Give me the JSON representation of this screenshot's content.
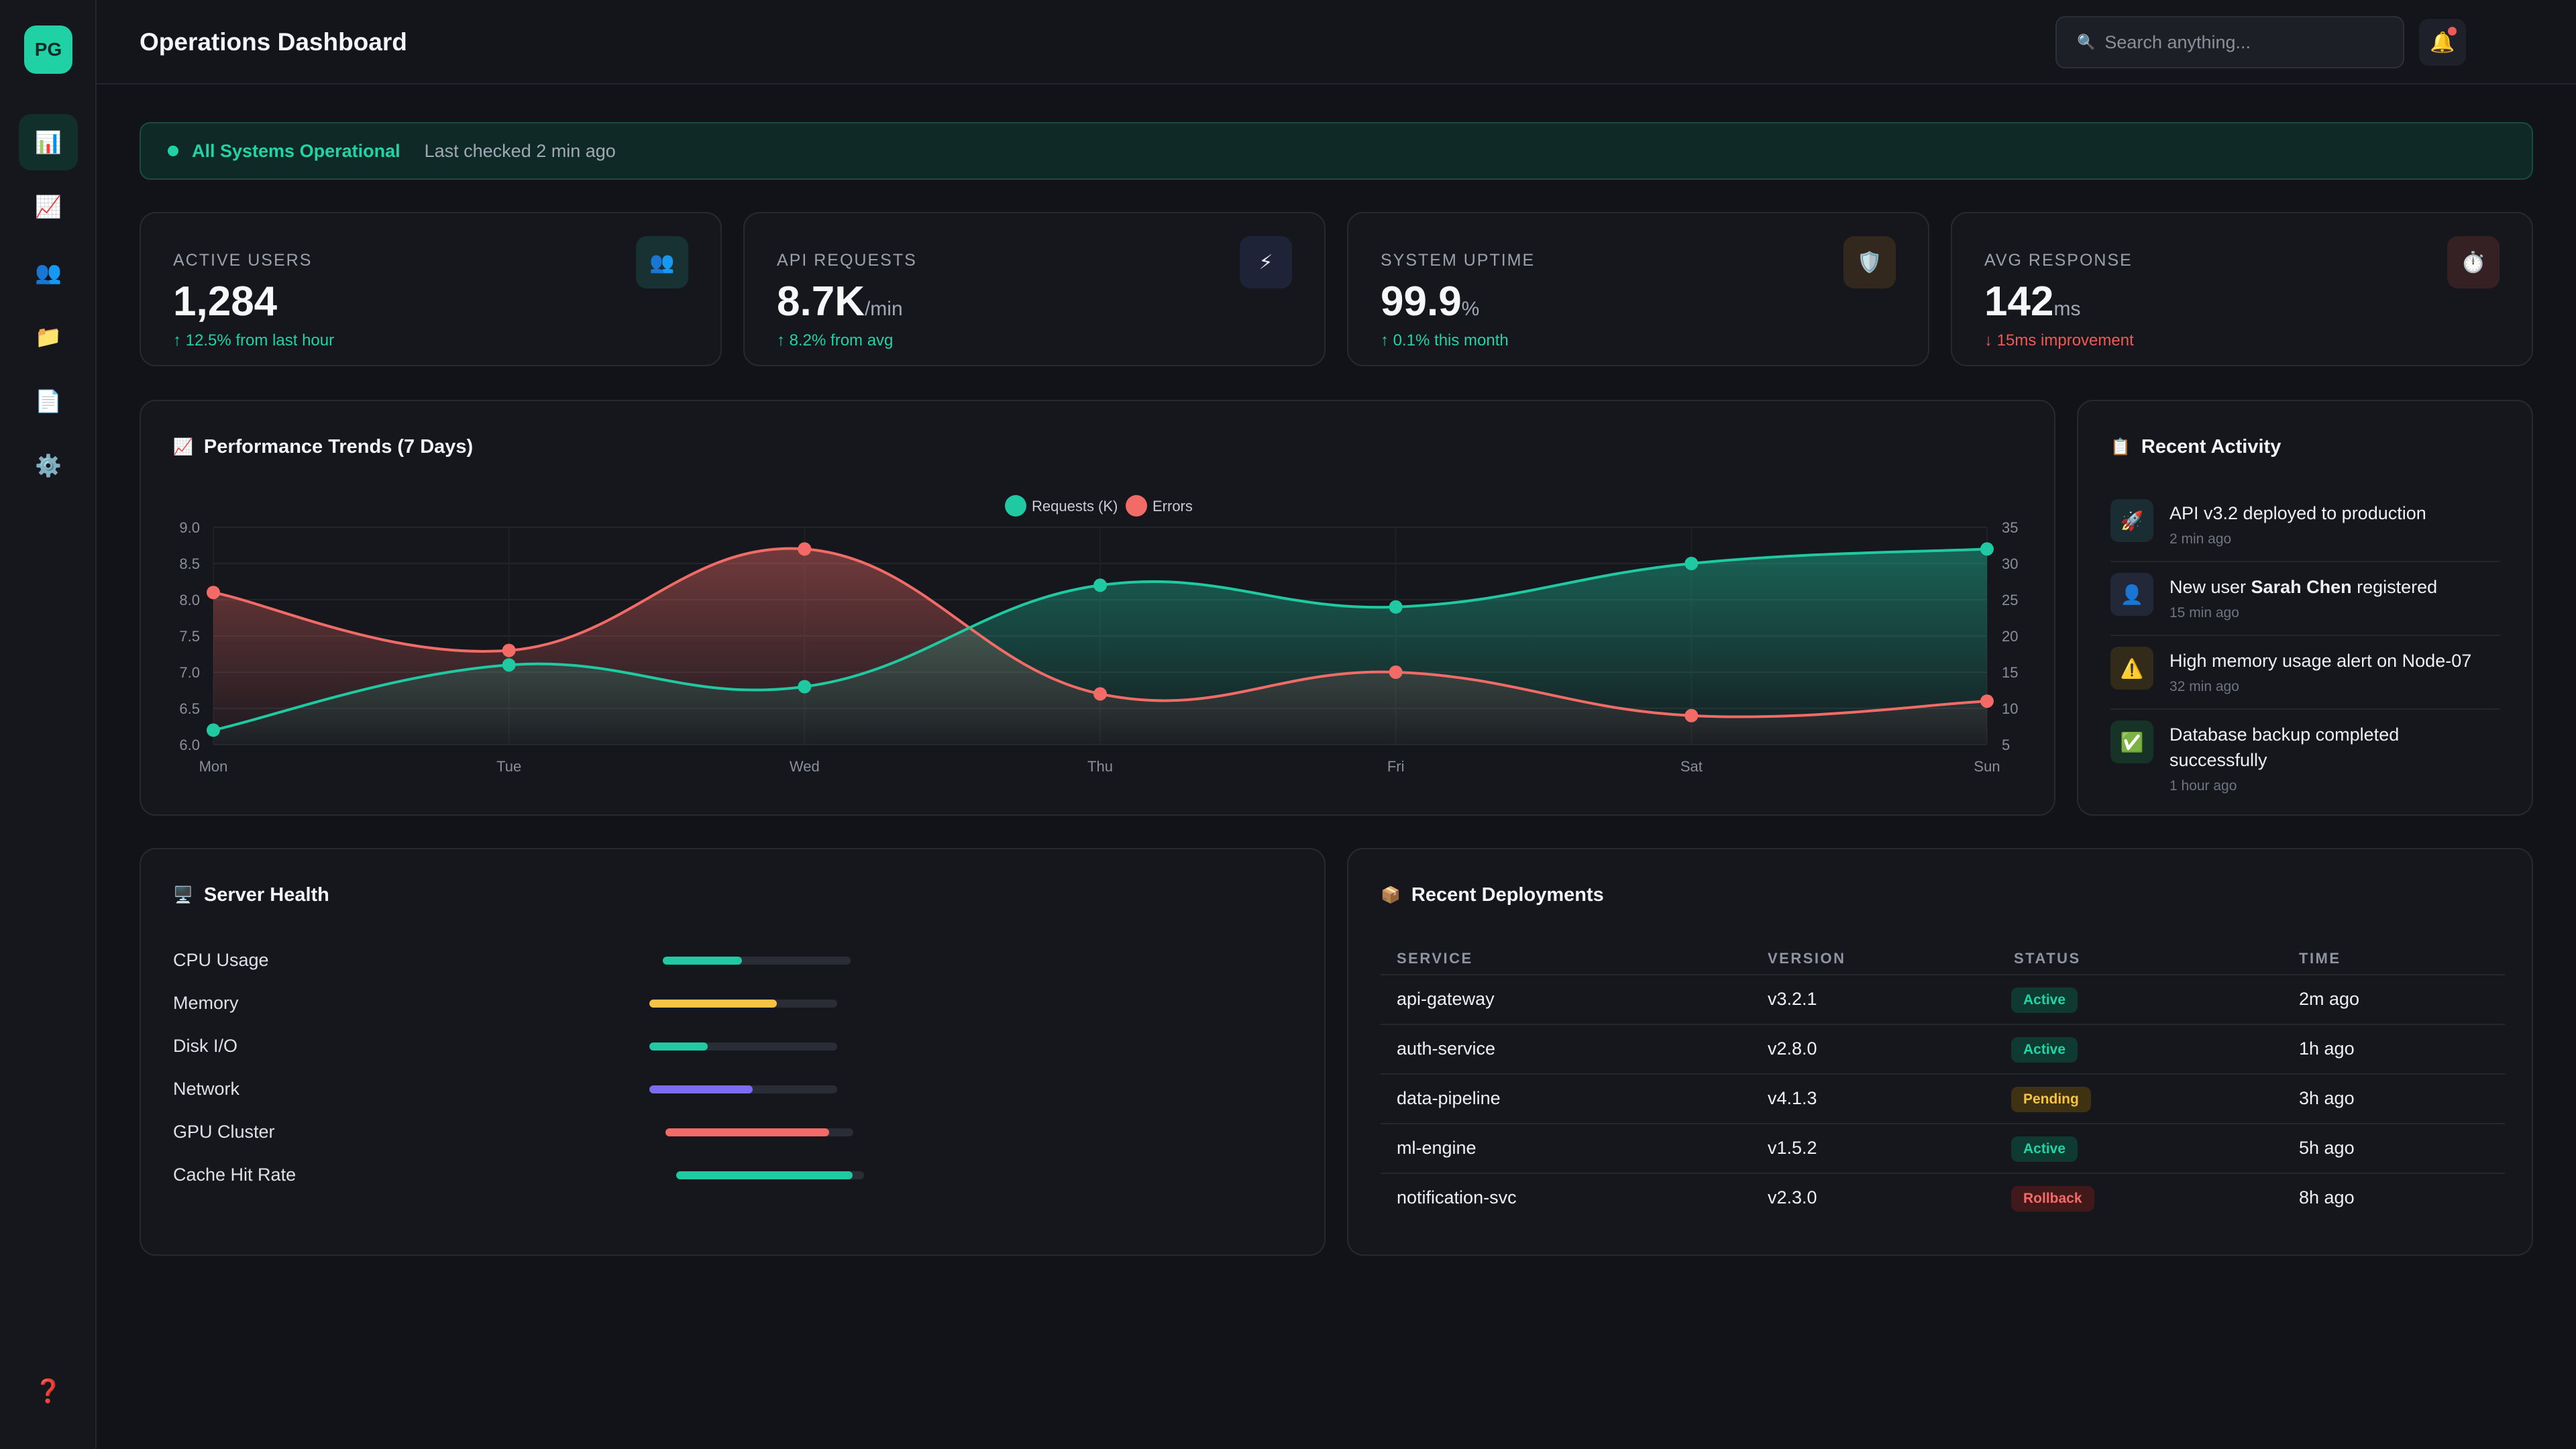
{
  "app": {
    "logo": "PG",
    "title": "Operations Dashboard"
  },
  "sidebar": {
    "items": [
      {
        "icon": "📊",
        "name": "overview"
      },
      {
        "icon": "📈",
        "name": "analytics"
      },
      {
        "icon": "👥",
        "name": "users"
      },
      {
        "icon": "📁",
        "name": "files"
      },
      {
        "icon": "📄",
        "name": "documents"
      },
      {
        "icon": "⚙️",
        "name": "settings"
      }
    ],
    "help_icon": "❓"
  },
  "header": {
    "search_placeholder": "Search anything...",
    "search_icon": "🔍",
    "bell_icon": "🔔"
  },
  "status": {
    "label": "All Systems Operational",
    "checked": "Last checked 2 min ago"
  },
  "stats": [
    {
      "label": "ACTIVE USERS",
      "value": "1,284",
      "unit": "",
      "delta": "↑ 12.5% from last hour",
      "trend": "up",
      "icon": "👥",
      "icon_bg": "#183233"
    },
    {
      "label": "API REQUESTS",
      "value": "8.7K",
      "unit": "/min",
      "delta": "↑ 8.2% from avg",
      "trend": "up",
      "icon": "⚡",
      "icon_bg": "#1f2338"
    },
    {
      "label": "SYSTEM UPTIME",
      "value": "99.9",
      "unit": "%",
      "delta": "↑ 0.1% this month",
      "trend": "up",
      "icon": "🛡️",
      "icon_bg": "#33281d"
    },
    {
      "label": "AVG RESPONSE",
      "value": "142",
      "unit": "ms",
      "delta": "↓ 15ms improvement",
      "trend": "down",
      "icon": "⏱️",
      "icon_bg": "#352024"
    }
  ],
  "performance": {
    "title": "Performance Trends (7 Days)",
    "icon": "📈"
  },
  "chart_data": {
    "type": "line",
    "x": [
      "Mon",
      "Tue",
      "Wed",
      "Thu",
      "Fri",
      "Sat",
      "Sun"
    ],
    "series": [
      {
        "name": "Requests (K)",
        "axis": "left",
        "color": "#1fc9a2",
        "values": [
          6.2,
          7.1,
          6.8,
          8.2,
          7.9,
          8.5,
          8.7
        ]
      },
      {
        "name": "Errors",
        "axis": "right",
        "color": "#f26b66",
        "values": [
          26,
          18,
          32,
          12,
          15,
          9,
          11
        ]
      }
    ],
    "y_left": {
      "ticks": [
        "9.0",
        "8.5",
        "8.0",
        "7.5",
        "7.0",
        "6.5",
        "6.0"
      ],
      "range": [
        6.0,
        9.0
      ]
    },
    "y_right": {
      "ticks": [
        "35",
        "30",
        "25",
        "20",
        "15",
        "10",
        "5"
      ],
      "range": [
        5,
        35
      ]
    },
    "legend": "top-center",
    "grid": true
  },
  "activity": {
    "title": "Recent Activity",
    "icon": "📋",
    "items": [
      {
        "icon": "🚀",
        "icon_bg": "#1a2d33",
        "pre": "API v3.2 deployed to production",
        "bold": "",
        "post": "",
        "time": "2 min ago"
      },
      {
        "icon": "👤",
        "icon_bg": "#232838",
        "pre": "New user ",
        "bold": "Sarah Chen",
        "post": " registered",
        "time": "15 min ago"
      },
      {
        "icon": "⚠️",
        "icon_bg": "#332b1a",
        "pre": "High memory usage alert on Node-07",
        "bold": "",
        "post": "",
        "time": "32 min ago"
      },
      {
        "icon": "✅",
        "icon_bg": "#173227",
        "pre": "Database backup completed successfully",
        "bold": "",
        "post": "",
        "time": "1 hour ago"
      }
    ]
  },
  "server_health": {
    "title": "Server Health",
    "icon": "🖥️",
    "rows": [
      {
        "label": "CPU Usage",
        "value": 0.42,
        "pct": "42%",
        "color": "#1fc9a2",
        "track_left": 986,
        "track_width": 280
      },
      {
        "label": "Memory",
        "value": 0.68,
        "pct": "68%",
        "color": "#f6c343",
        "track_left": 966,
        "track_width": 280
      },
      {
        "label": "Disk I/O",
        "value": 0.31,
        "pct": "31%",
        "color": "#1fc9a2",
        "track_left": 966,
        "track_width": 280
      },
      {
        "label": "Network",
        "value": 0.55,
        "pct": "55%",
        "color": "#7b6cf0",
        "track_left": 966,
        "track_width": 280
      },
      {
        "label": "GPU Cluster",
        "value": 0.87,
        "pct": "87%",
        "color": "#f26b66",
        "track_left": 990,
        "track_width": 280
      },
      {
        "label": "Cache Hit Rate",
        "value": 0.94,
        "pct": "94%",
        "color": "#1fc9a2",
        "track_left": 1006,
        "track_width": 280
      }
    ]
  },
  "deployments": {
    "title": "Recent Deployments",
    "icon": "📦",
    "columns": [
      "SERVICE",
      "VERSION",
      "STATUS",
      "TIME"
    ],
    "rows": [
      {
        "service": "api-gateway",
        "version": "v3.2.1",
        "status": "Active",
        "status_kind": "active",
        "time": "2m ago"
      },
      {
        "service": "auth-service",
        "version": "v2.8.0",
        "status": "Active",
        "status_kind": "active",
        "time": "1h ago"
      },
      {
        "service": "data-pipeline",
        "version": "v4.1.3",
        "status": "Pending",
        "status_kind": "pending",
        "time": "3h ago"
      },
      {
        "service": "ml-engine",
        "version": "v1.5.2",
        "status": "Active",
        "status_kind": "active",
        "time": "5h ago"
      },
      {
        "service": "notification-svc",
        "version": "v2.3.0",
        "status": "Rollback",
        "status_kind": "rollback",
        "time": "8h ago"
      }
    ]
  }
}
